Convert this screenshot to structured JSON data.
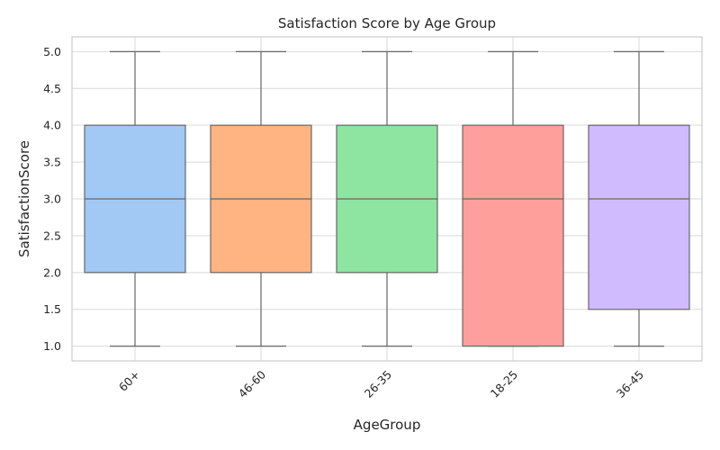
{
  "chart_data": {
    "type": "box",
    "title": "Satisfaction Score by Age Group",
    "xlabel": "AgeGroup",
    "ylabel": "SatisfactionScore",
    "ylim": [
      0.8,
      5.2
    ],
    "y_ticks": [
      "1.0",
      "1.5",
      "2.0",
      "2.5",
      "3.0",
      "3.5",
      "4.0",
      "4.5",
      "5.0"
    ],
    "grid": true,
    "categories": [
      "60+",
      "46-60",
      "26-35",
      "18-25",
      "36-45"
    ],
    "boxes": [
      {
        "category": "60+",
        "min": 1,
        "q1": 2,
        "median": 3,
        "q3": 4,
        "max": 5,
        "color": "#a1c9f4"
      },
      {
        "category": "46-60",
        "min": 1,
        "q1": 2,
        "median": 3,
        "q3": 4,
        "max": 5,
        "color": "#ffb482"
      },
      {
        "category": "26-35",
        "min": 1,
        "q1": 2,
        "median": 3,
        "q3": 4,
        "max": 5,
        "color": "#8de5a1"
      },
      {
        "category": "18-25",
        "min": 1,
        "q1": 1,
        "median": 3,
        "q3": 4,
        "max": 5,
        "color": "#ff9f9b"
      },
      {
        "category": "36-45",
        "min": 1,
        "q1": 1.5,
        "median": 3,
        "q3": 4,
        "max": 5,
        "color": "#d0bbff"
      }
    ]
  }
}
